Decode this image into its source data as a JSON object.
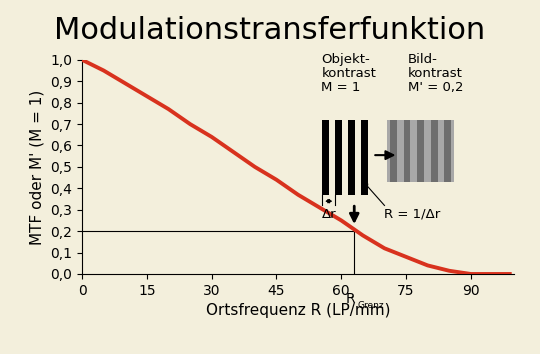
{
  "chart_data": {
    "type": "line",
    "title": "Modulationstransferfunktion",
    "x_label": "Ortsfrequenz R (LP/mm)",
    "y_label": "MTF oder M' (M = 1)",
    "x": [
      0,
      5,
      10,
      15,
      20,
      25,
      30,
      35,
      40,
      45,
      50,
      55,
      60,
      65,
      70,
      75,
      80,
      85,
      90,
      95,
      99
    ],
    "values": [
      1.0,
      0.95,
      0.89,
      0.83,
      0.77,
      0.7,
      0.64,
      0.57,
      0.5,
      0.44,
      0.37,
      0.31,
      0.25,
      0.18,
      0.12,
      0.08,
      0.04,
      0.015,
      0.0,
      0.0,
      0.0
    ],
    "color": "#d8321e",
    "xlim": [
      0,
      100
    ],
    "xticks": [
      0,
      15,
      30,
      45,
      60,
      75,
      90
    ],
    "ylim": [
      0,
      1.0
    ],
    "yticks": [
      {
        "value": 0.0,
        "label": "0,0"
      },
      {
        "value": 0.1,
        "label": "0,1"
      },
      {
        "value": 0.2,
        "label": "0,2"
      },
      {
        "value": 0.3,
        "label": "0,3"
      },
      {
        "value": 0.4,
        "label": "0,4"
      },
      {
        "value": 0.5,
        "label": "0,5"
      },
      {
        "value": 0.6,
        "label": "0,6"
      },
      {
        "value": 0.7,
        "label": "0,7"
      },
      {
        "value": 0.8,
        "label": "0,8"
      },
      {
        "value": 0.9,
        "label": "0,9"
      },
      {
        "value": 1.0,
        "label": "1,0"
      }
    ],
    "grid": false,
    "limit": {
      "x": 63,
      "y": 0.2,
      "label": "R",
      "label_sub": "Grenz"
    },
    "object_text": "Objekt-\nkontrast\nM = 1",
    "image_text": "Bild-\nkontrast\nM' = 0,2",
    "period_text": "Δr",
    "frequency_text": "R = 1/Δr"
  }
}
